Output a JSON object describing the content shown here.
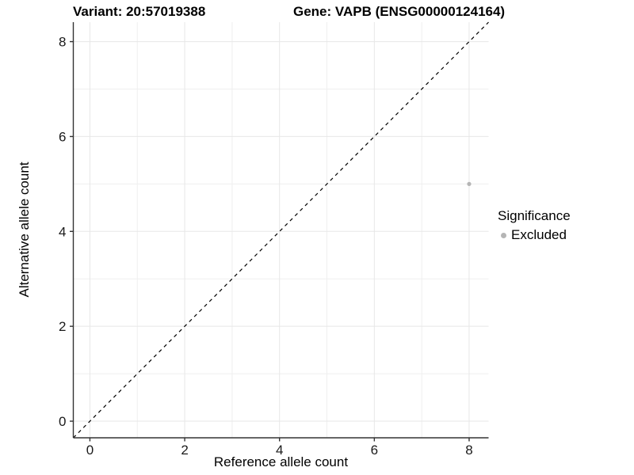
{
  "figure": {
    "title_left": "Variant: 20:57019388",
    "title_right": "Gene: VAPB (ENSG00000124164)"
  },
  "chart_data": {
    "type": "scatter",
    "title": "Variant: 20:57019388   Gene: VAPB (ENSG00000124164)",
    "xlabel": "Reference allele count",
    "ylabel": "Alternative allele count",
    "xlim": [
      -0.35,
      8.41
    ],
    "ylim": [
      -0.35,
      8.41
    ],
    "xticks": [
      0,
      2,
      4,
      6,
      8
    ],
    "yticks": [
      0,
      2,
      4,
      6,
      8
    ],
    "minor_gridlines": [
      1,
      3,
      5,
      7
    ],
    "grid": "on",
    "points": [
      {
        "x": 8,
        "y": 5,
        "series": "Excluded"
      }
    ],
    "reference_line": {
      "style": "dashed",
      "slope": 1,
      "intercept": 0
    },
    "legend": {
      "title": "Significance",
      "position": "right",
      "items": [
        {
          "label": "Excluded",
          "color": "#b5b5b5",
          "marker": "circle"
        }
      ]
    }
  },
  "colors": {
    "background": "#ffffff",
    "grid_major": "#e7e7e7",
    "grid_minor": "#efefef",
    "axis": "#333333",
    "tick_label": "#1a1a1a",
    "reference_line": "#000000",
    "point_default": "#b5b5b5"
  }
}
